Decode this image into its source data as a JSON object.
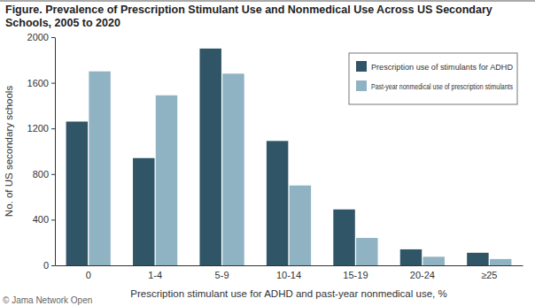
{
  "chart_data": {
    "type": "bar",
    "title": "Figure. Prevalence of Prescription Stimulant Use and Nonmedical Use Across US Secondary Schools, 2005 to 2020",
    "x_label": "Prescription stimulant use for ADHD and past-year nonmedical use, %",
    "y_label": "No. of US secondary schools",
    "annotations": [
      "© Jama Network Open"
    ],
    "categories": [
      "0",
      "1-4",
      "5-9",
      "10-14",
      "15-19",
      "20-24",
      "≥25"
    ],
    "series": [
      {
        "name": "Prescription use of stimulants for ADHD",
        "color": "#2f5566",
        "values": [
          1260,
          940,
          1900,
          1090,
          490,
          140,
          110
        ]
      },
      {
        "name": "Past-year nonmedical use of prescription stimulants",
        "color": "#8fb3c3",
        "values": [
          1700,
          1490,
          1680,
          700,
          240,
          75,
          55
        ]
      }
    ],
    "ylim": [
      0,
      2000
    ],
    "yticks": [
      0,
      400,
      800,
      1200,
      1600,
      2000
    ],
    "grid": false,
    "legend": "upper right"
  }
}
